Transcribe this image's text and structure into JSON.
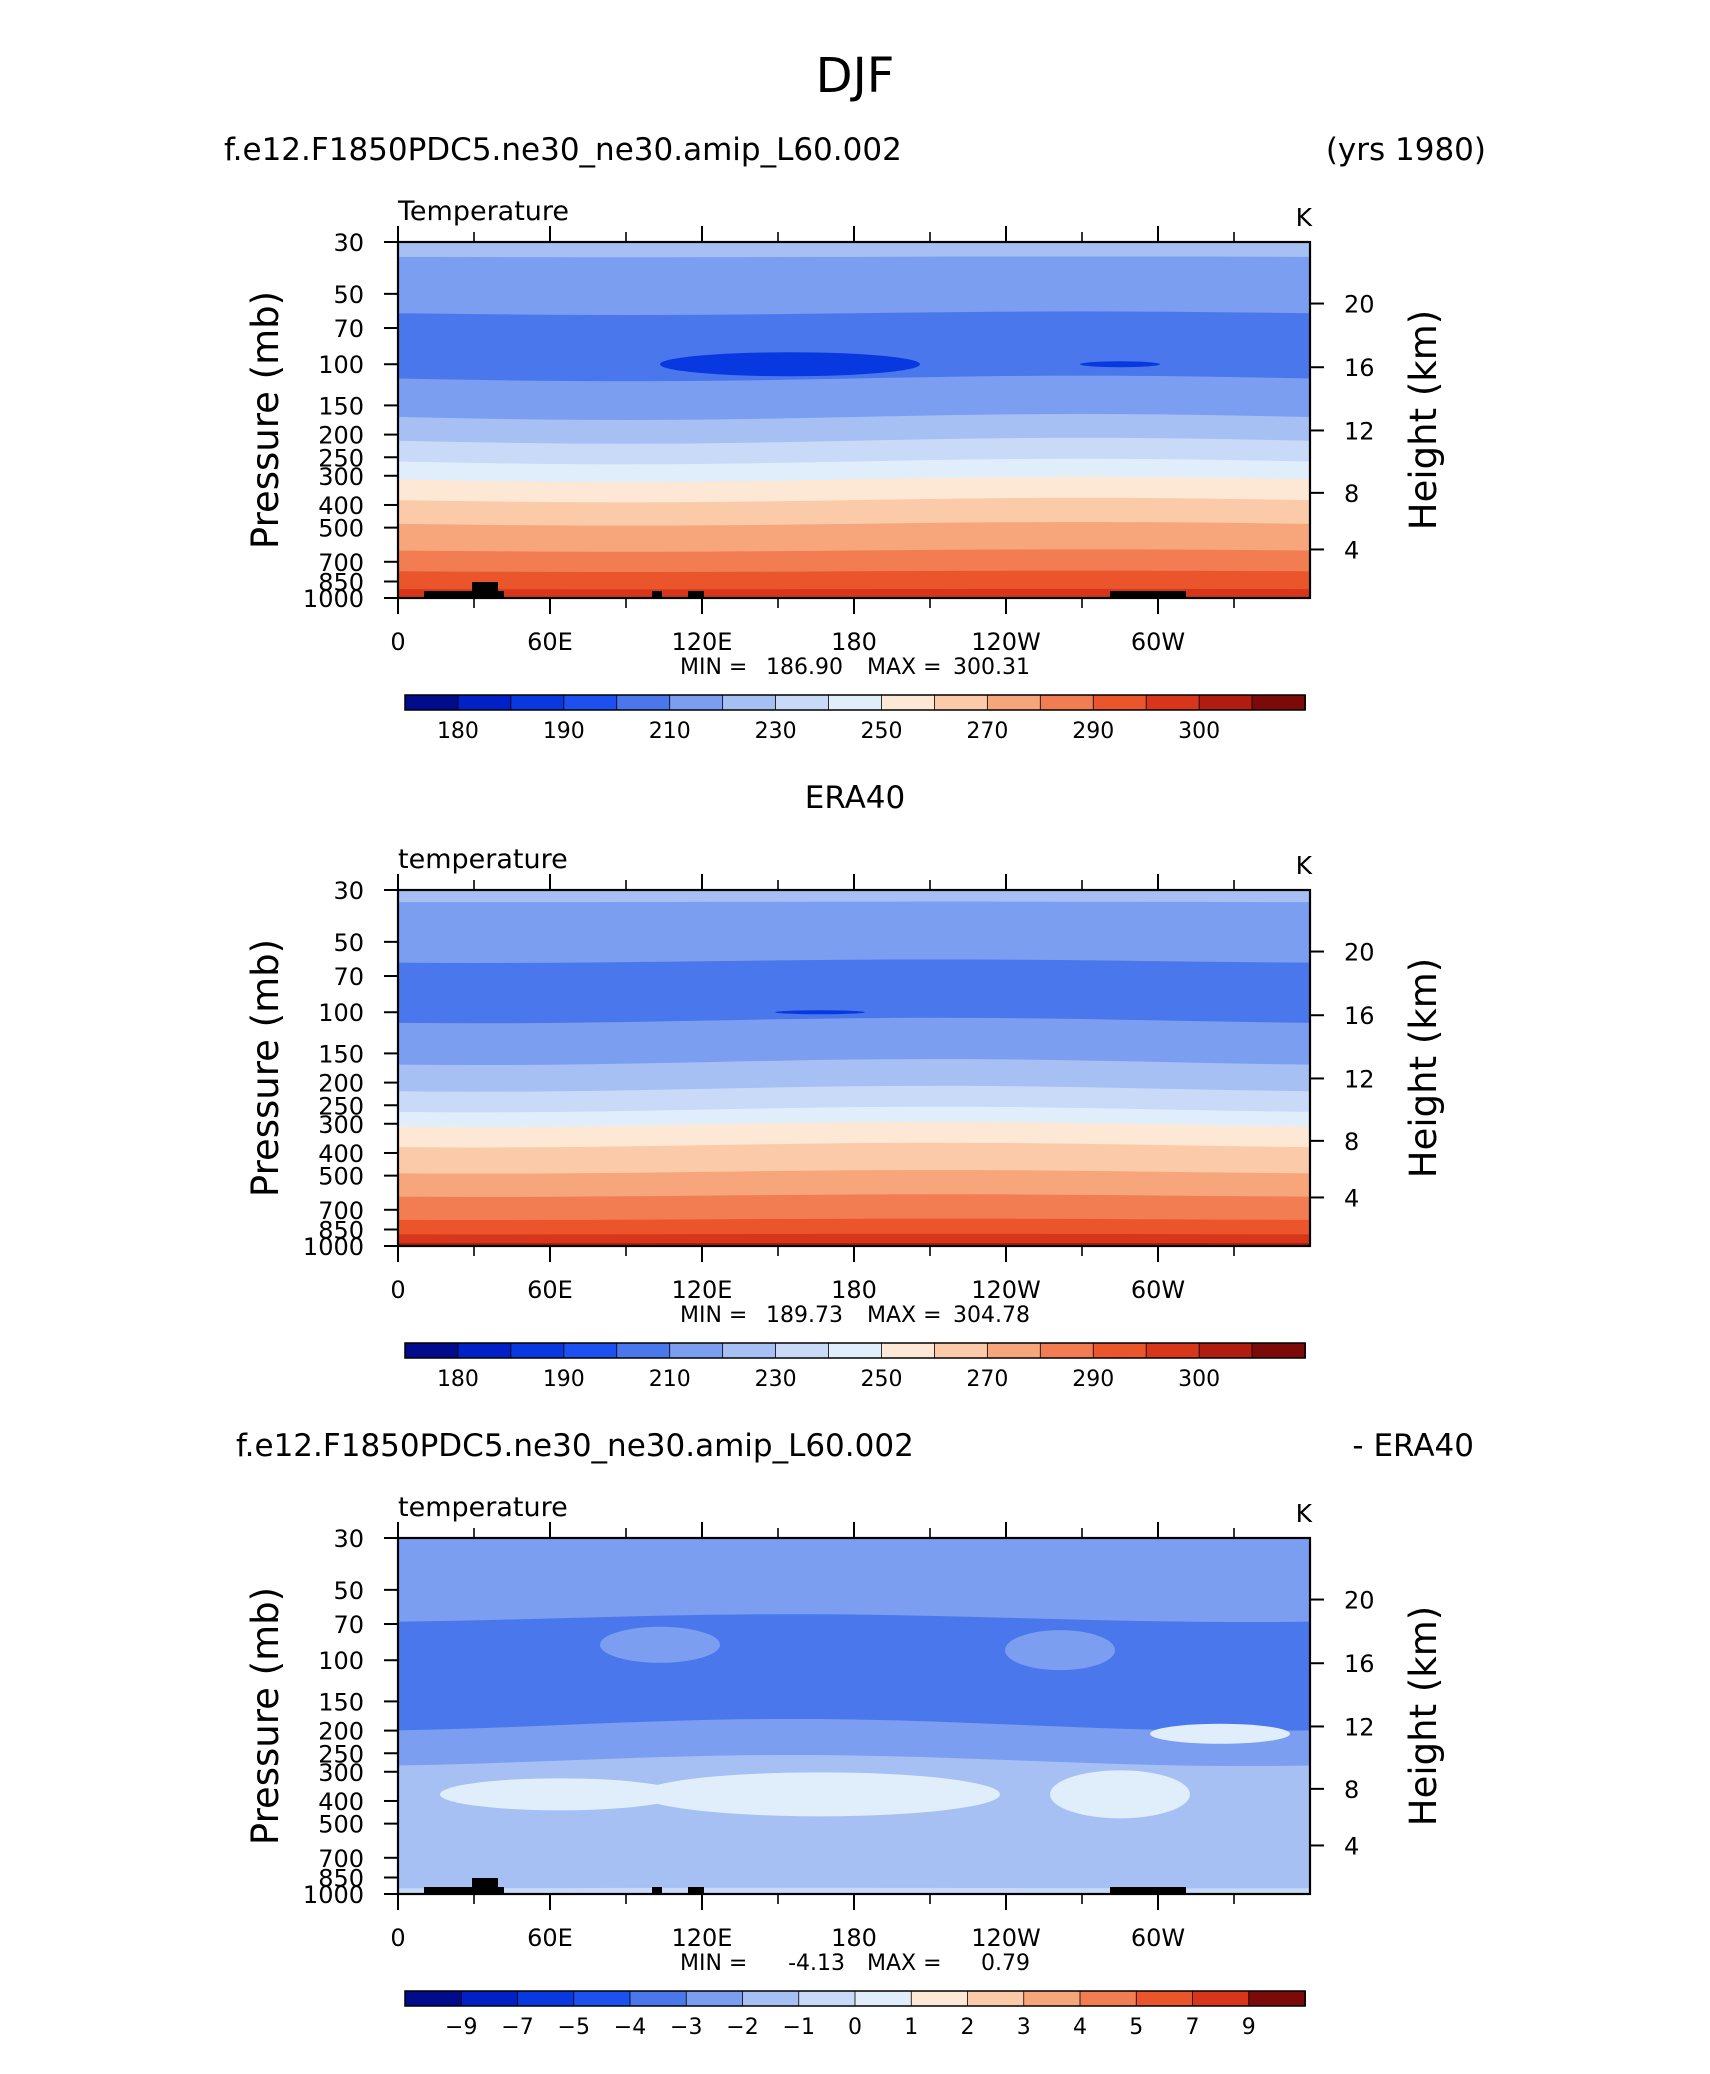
{
  "figure_title": "DJF",
  "chart_data": [
    {
      "type": "contour",
      "header_left": "f.e12.F1850PDC5.ne30_ne30.amip_L60.002",
      "header_right": "(yrs 1980)",
      "variable": "Temperature",
      "units": "K",
      "ylabel_left": "Pressure (mb)",
      "ylabel_right": "Height (km)",
      "pressure_ticks": [
        "30",
        "50",
        "70",
        "100",
        "150",
        "200",
        "250",
        "300",
        "400",
        "500",
        "700",
        "850",
        "1000"
      ],
      "height_ticks": [
        "20",
        "16",
        "12",
        "8",
        "4"
      ],
      "lon_ticks": [
        "0",
        "60E",
        "120E",
        "180",
        "120W",
        "60W"
      ],
      "min_label": "MIN =",
      "min_value": "186.90",
      "max_label": "MAX =",
      "max_value": "300.31",
      "colorbar_labels": [
        "180",
        "190",
        "210",
        "230",
        "250",
        "270",
        "290",
        "300"
      ],
      "levels": [
        {
          "p": 30,
          "t": 215
        },
        {
          "p": 40,
          "t": 205
        },
        {
          "p": 60,
          "t": 200
        },
        {
          "p": 100,
          "t": 198
        },
        {
          "p": 140,
          "t": 203
        },
        {
          "p": 180,
          "t": 212
        },
        {
          "p": 220,
          "t": 221
        },
        {
          "p": 270,
          "t": 231
        },
        {
          "p": 320,
          "t": 242
        },
        {
          "p": 400,
          "t": 252
        },
        {
          "p": 500,
          "t": 261
        },
        {
          "p": 620,
          "t": 270
        },
        {
          "p": 750,
          "t": 278
        },
        {
          "p": 860,
          "t": 286
        },
        {
          "p": 960,
          "t": 293
        }
      ]
    },
    {
      "type": "contour",
      "header_center": "ERA40",
      "variable": "temperature",
      "units": "K",
      "ylabel_left": "Pressure (mb)",
      "ylabel_right": "Height (km)",
      "pressure_ticks": [
        "30",
        "50",
        "70",
        "100",
        "150",
        "200",
        "250",
        "300",
        "400",
        "500",
        "700",
        "850",
        "1000"
      ],
      "height_ticks": [
        "20",
        "16",
        "12",
        "8",
        "4"
      ],
      "lon_ticks": [
        "0",
        "60E",
        "120E",
        "180",
        "120W",
        "60W"
      ],
      "min_label": "MIN =",
      "min_value": "189.73",
      "max_label": "MAX =",
      "max_value": "304.78",
      "colorbar_labels": [
        "180",
        "190",
        "210",
        "230",
        "250",
        "270",
        "290",
        "300"
      ],
      "levels": [
        {
          "p": 30,
          "t": 214
        },
        {
          "p": 40,
          "t": 205
        },
        {
          "p": 60,
          "t": 200
        },
        {
          "p": 100,
          "t": 199
        },
        {
          "p": 140,
          "t": 204
        },
        {
          "p": 180,
          "t": 213
        },
        {
          "p": 220,
          "t": 222
        },
        {
          "p": 270,
          "t": 232
        },
        {
          "p": 320,
          "t": 243
        },
        {
          "p": 400,
          "t": 253
        },
        {
          "p": 500,
          "t": 262
        },
        {
          "p": 620,
          "t": 271
        },
        {
          "p": 750,
          "t": 279
        },
        {
          "p": 860,
          "t": 287
        },
        {
          "p": 960,
          "t": 295
        }
      ]
    },
    {
      "type": "contour",
      "header_left": "f.e12.F1850PDC5.ne30_ne30.amip_L60.002",
      "header_right": "- ERA40",
      "variable": "temperature",
      "units": "K",
      "ylabel_left": "Pressure (mb)",
      "ylabel_right": "Height (km)",
      "pressure_ticks": [
        "30",
        "50",
        "70",
        "100",
        "150",
        "200",
        "250",
        "300",
        "400",
        "500",
        "700",
        "850",
        "1000"
      ],
      "height_ticks": [
        "20",
        "16",
        "12",
        "8",
        "4"
      ],
      "lon_ticks": [
        "0",
        "60E",
        "120E",
        "180",
        "120W",
        "60W"
      ],
      "min_label": "MIN =",
      "min_value": "-4.13",
      "max_label": "MAX =",
      "max_value": "0.79",
      "colorbar_labels": [
        "−9",
        "−7",
        "−5",
        "−4",
        "−3",
        "−2",
        "−1",
        "0",
        "1",
        "2",
        "3",
        "4",
        "5",
        "7",
        "9"
      ],
      "levels": [
        {
          "p": 30,
          "t": -2.5
        },
        {
          "p": 50,
          "t": -2.5
        },
        {
          "p": 75,
          "t": -3.2
        },
        {
          "p": 110,
          "t": -3.5
        },
        {
          "p": 160,
          "t": -3.6
        },
        {
          "p": 220,
          "t": -2.5
        },
        {
          "p": 320,
          "t": -1.6
        },
        {
          "p": 430,
          "t": -1.4
        },
        {
          "p": 600,
          "t": -1.6
        },
        {
          "p": 760,
          "t": -1.5
        },
        {
          "p": 900,
          "t": -1.3
        },
        {
          "p": 980,
          "t": -0.8
        }
      ]
    }
  ],
  "colors": {
    "temp_palette": [
      "#000c8c",
      "#0020c8",
      "#0838e0",
      "#1c50f0",
      "#4a78ec",
      "#7c9ef0",
      "#a6c0f4",
      "#c8daf8",
      "#e0eefc",
      "#fde7d5",
      "#fbcaa8",
      "#f7a67c",
      "#f27d52",
      "#eb552c",
      "#d8361a",
      "#b01c0e",
      "#7c0a08"
    ],
    "temp_bounds": [
      175,
      180,
      185,
      190,
      200,
      210,
      220,
      230,
      240,
      250,
      260,
      270,
      280,
      290,
      295,
      300
    ],
    "diff_palette": [
      "#000c8c",
      "#0020c8",
      "#0838e0",
      "#1c50f0",
      "#4a78ec",
      "#7c9ef0",
      "#a6c0f4",
      "#c8daf8",
      "#e0eefc",
      "#fde7d5",
      "#fbcaa8",
      "#f7a67c",
      "#f27d52",
      "#eb552c",
      "#d8361a",
      "#7c0a08"
    ],
    "diff_bounds": [
      -9,
      -7,
      -5,
      -4,
      -3,
      -2,
      -1,
      0,
      1,
      2,
      3,
      4,
      5,
      7,
      9
    ]
  }
}
